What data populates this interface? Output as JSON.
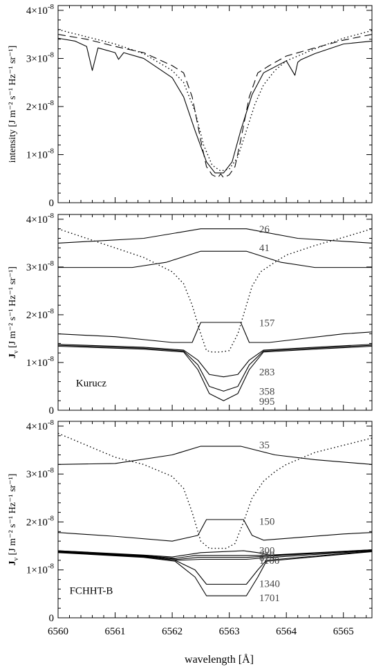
{
  "figure": {
    "xlabel": "wavelength  [Å]",
    "xticks": [
      "6560",
      "6561",
      "6562",
      "6563",
      "6564",
      "6565"
    ],
    "yticks": [
      {
        "mant": "0",
        "exp": ""
      },
      {
        "mant": "1×10",
        "exp": "-8"
      },
      {
        "mant": "2×10",
        "exp": "-8"
      },
      {
        "mant": "3×10",
        "exp": "-8"
      },
      {
        "mant": "4×10",
        "exp": "-8"
      }
    ]
  },
  "chart_data": [
    {
      "type": "line",
      "panel": "top",
      "ylabel": "intensity  [J m⁻² s⁻¹ Hz⁻¹ sr⁻¹]",
      "xlim": [
        6560,
        6565.5
      ],
      "ylim": [
        0,
        4.1e-08
      ],
      "series": [
        {
          "style": "solid",
          "x": [
            6560,
            6560.3,
            6560.5,
            6560.6,
            6560.7,
            6561.0,
            6561.06,
            6561.15,
            6561.5,
            6562.0,
            6562.2,
            6562.4,
            6562.6,
            6562.75,
            6562.9,
            6563.05,
            6563.2,
            6563.4,
            6563.6,
            6564.0,
            6564.15,
            6564.2,
            6564.25,
            6564.5,
            6565.0,
            6565.5
          ],
          "y": [
            3.42e-08,
            3.36e-08,
            3.25e-08,
            2.75e-08,
            3.22e-08,
            3.12e-08,
            2.98e-08,
            3.12e-08,
            3e-08,
            2.6e-08,
            2.2e-08,
            1.5e-08,
            8.5e-09,
            6.2e-09,
            6.2e-09,
            8.5e-09,
            1.5e-08,
            2.25e-08,
            2.7e-08,
            2.95e-08,
            2.65e-08,
            2.92e-08,
            2.97e-08,
            3.1e-08,
            3.3e-08,
            3.36e-08
          ]
        },
        {
          "style": "dashed",
          "x": [
            6560,
            6560.5,
            6561.0,
            6561.5,
            6562.0,
            6562.2,
            6562.35,
            6562.5,
            6562.6,
            6562.7,
            6562.8,
            6562.85,
            6562.9,
            6563.0,
            6563.1,
            6563.2,
            6563.35,
            6563.5,
            6563.7,
            6564.0,
            6564.5,
            6565.0,
            6565.5
          ],
          "y": [
            3.5e-08,
            3.4e-08,
            3.25e-08,
            3.12e-08,
            2.85e-08,
            2.7e-08,
            2.2e-08,
            1.3e-08,
            7.5e-09,
            5.8e-09,
            5.2e-09,
            6e-09,
            5.2e-09,
            5.8e-09,
            7.5e-09,
            1.3e-08,
            2.2e-08,
            2.7e-08,
            2.85e-08,
            3.05e-08,
            3.22e-08,
            3.38e-08,
            3.5e-08
          ]
        },
        {
          "style": "dotted",
          "x": [
            6560,
            6560.5,
            6561.0,
            6561.5,
            6562.0,
            6562.2,
            6562.4,
            6562.55,
            6562.7,
            6562.85,
            6563.0,
            6563.15,
            6563.3,
            6563.45,
            6563.6,
            6563.8,
            6564.0,
            6564.5,
            6565.0,
            6565.5
          ],
          "y": [
            3.6e-08,
            3.45e-08,
            3.3e-08,
            3.1e-08,
            2.75e-08,
            2.5e-08,
            1.9e-08,
            1.2e-08,
            7.8e-09,
            6.6e-09,
            7e-09,
            9.5e-09,
            1.5e-08,
            2.05e-08,
            2.45e-08,
            2.75e-08,
            2.95e-08,
            3.2e-08,
            3.42e-08,
            3.58e-08
          ]
        }
      ]
    },
    {
      "type": "line",
      "panel": "middle",
      "ylabel": "J",
      "ylabel_sub": "ν",
      "ylabel_units": "[J m⁻² s⁻¹ Hz⁻¹ sr⁻¹]",
      "annotation": "Kurucz",
      "xlim": [
        6560,
        6565.5
      ],
      "ylim": [
        0,
        4.1e-08
      ],
      "series": [
        {
          "name": "26",
          "x": [
            6560,
            6561.5,
            6562.5,
            6563.3,
            6564.2,
            6565.5
          ],
          "y": [
            3.5e-08,
            3.6e-08,
            3.8e-08,
            3.8e-08,
            3.6e-08,
            3.5e-08
          ]
        },
        {
          "name": "41",
          "x": [
            6560,
            6561.3,
            6561.9,
            6562.5,
            6563.3,
            6563.9,
            6564.5,
            6565.5
          ],
          "y": [
            2.99e-08,
            2.99e-08,
            3.1e-08,
            3.33e-08,
            3.33e-08,
            3.1e-08,
            2.99e-08,
            2.99e-08
          ]
        },
        {
          "name": "157",
          "x": [
            6560,
            6561.0,
            6562.0,
            6562.35,
            6562.5,
            6563.2,
            6563.35,
            6563.7,
            6565.0,
            6565.5
          ],
          "y": [
            1.6e-08,
            1.54e-08,
            1.42e-08,
            1.42e-08,
            1.84e-08,
            1.84e-08,
            1.42e-08,
            1.42e-08,
            1.6e-08,
            1.64e-08
          ]
        },
        {
          "name": "283",
          "x": [
            6560,
            6561.5,
            6562.2,
            6562.45,
            6562.65,
            6562.9,
            6563.15,
            6563.35,
            6563.6,
            6564.5,
            6565.5
          ],
          "y": [
            1.38e-08,
            1.32e-08,
            1.26e-08,
            1.05e-08,
            7.5e-09,
            7e-09,
            7.5e-09,
            1.05e-08,
            1.26e-08,
            1.32e-08,
            1.38e-08
          ]
        },
        {
          "name": "358",
          "x": [
            6560,
            6561.5,
            6562.2,
            6562.45,
            6562.65,
            6562.9,
            6563.15,
            6563.35,
            6563.6,
            6564.5,
            6565.5
          ],
          "y": [
            1.36e-08,
            1.3e-08,
            1.24e-08,
            9.5e-09,
            5e-09,
            4e-09,
            5e-09,
            9.5e-09,
            1.24e-08,
            1.3e-08,
            1.36e-08
          ]
        },
        {
          "name": "995",
          "x": [
            6560,
            6561.5,
            6562.2,
            6562.45,
            6562.65,
            6562.9,
            6563.15,
            6563.35,
            6563.6,
            6564.5,
            6565.5
          ],
          "y": [
            1.34e-08,
            1.28e-08,
            1.22e-08,
            8.5e-09,
            3.5e-09,
            2e-09,
            3.5e-09,
            8.5e-09,
            1.22e-08,
            1.28e-08,
            1.34e-08
          ]
        },
        {
          "style": "dotted",
          "x": [
            6560,
            6560.5,
            6561.0,
            6561.5,
            6562.0,
            6562.2,
            6562.35,
            6562.5,
            6562.6,
            6562.7,
            6562.85,
            6563.0,
            6563.15,
            6563.25,
            6563.4,
            6563.55,
            6563.8,
            6564.0,
            6564.5,
            6565.0,
            6565.5
          ],
          "y": [
            3.8e-08,
            3.6e-08,
            3.4e-08,
            3.2e-08,
            2.9e-08,
            2.65e-08,
            2.2e-08,
            1.6e-08,
            1.25e-08,
            1.22e-08,
            1.22e-08,
            1.25e-08,
            1.6e-08,
            2e-08,
            2.6e-08,
            2.9e-08,
            3.1e-08,
            3.25e-08,
            3.45e-08,
            3.62e-08,
            3.8e-08
          ]
        }
      ]
    },
    {
      "type": "line",
      "panel": "bottom",
      "ylabel": "J",
      "ylabel_sub": "ν",
      "ylabel_units": "[J m⁻² s⁻¹ Hz⁻¹ sr⁻¹]",
      "annotation": "FCHHT-B",
      "xlim": [
        6560,
        6565.5
      ],
      "ylim": [
        0,
        4.1e-08
      ],
      "series": [
        {
          "name": "35",
          "x": [
            6560,
            6561.0,
            6562.0,
            6562.5,
            6563.2,
            6563.8,
            6564.5,
            6565.5
          ],
          "y": [
            3.2e-08,
            3.22e-08,
            3.4e-08,
            3.58e-08,
            3.58e-08,
            3.4e-08,
            3.3e-08,
            3.2e-08
          ]
        },
        {
          "name": "150",
          "x": [
            6560,
            6561.0,
            6562.0,
            6562.45,
            6562.6,
            6563.25,
            6563.4,
            6563.6,
            6565.0,
            6565.5
          ],
          "y": [
            1.78e-08,
            1.7e-08,
            1.6e-08,
            1.72e-08,
            2.05e-08,
            2.05e-08,
            1.72e-08,
            1.62e-08,
            1.75e-08,
            1.78e-08
          ]
        },
        {
          "name": "300",
          "x": [
            6560,
            6561.5,
            6562.0,
            6562.5,
            6563.25,
            6563.5,
            6563.75,
            6565.5
          ],
          "y": [
            1.4e-08,
            1.31e-08,
            1.27e-08,
            1.36e-08,
            1.4e-08,
            1.36e-08,
            1.3e-08,
            1.42e-08
          ]
        },
        {
          "name": "719",
          "x": [
            6560,
            6561.5,
            6562.05,
            6562.4,
            6563.3,
            6563.55,
            6565.5
          ],
          "y": [
            1.4e-08,
            1.3e-08,
            1.24e-08,
            1.3e-08,
            1.3e-08,
            1.3e-08,
            1.42e-08
          ]
        },
        {
          "name": "629",
          "x": [
            6560,
            6561.5,
            6562.1,
            6562.45,
            6563.3,
            6563.6,
            6565.5
          ],
          "y": [
            1.39e-08,
            1.29e-08,
            1.22e-08,
            1.26e-08,
            1.26e-08,
            1.28e-08,
            1.41e-08
          ]
        },
        {
          "name": "1100",
          "x": [
            6560,
            6561.5,
            6562.1,
            6562.5,
            6563.3,
            6563.6,
            6565.5
          ],
          "y": [
            1.38e-08,
            1.28e-08,
            1.2e-08,
            1.22e-08,
            1.22e-08,
            1.25e-08,
            1.4e-08
          ]
        },
        {
          "name": "1340",
          "x": [
            6560,
            6561.5,
            6562.05,
            6562.4,
            6562.6,
            6563.3,
            6563.5,
            6563.65,
            6565.5
          ],
          "y": [
            1.37e-08,
            1.27e-08,
            1.2e-08,
            1e-08,
            7e-09,
            7e-09,
            1e-08,
            1.2e-08,
            1.39e-08
          ]
        },
        {
          "name": "1701",
          "x": [
            6560,
            6561.5,
            6562.05,
            6562.4,
            6562.6,
            6563.3,
            6563.5,
            6563.65,
            6565.5
          ],
          "y": [
            1.36e-08,
            1.26e-08,
            1.18e-08,
            8.5e-09,
            4.6e-09,
            4.6e-09,
            8.5e-09,
            1.18e-08,
            1.38e-08
          ]
        },
        {
          "style": "dotted",
          "x": [
            6560,
            6560.5,
            6561.0,
            6561.5,
            6562.0,
            6562.2,
            6562.35,
            6562.5,
            6562.65,
            6562.8,
            6562.95,
            6563.1,
            6563.25,
            6563.4,
            6563.6,
            6563.8,
            6564.0,
            6564.5,
            6565.0,
            6565.5
          ],
          "y": [
            3.85e-08,
            3.6e-08,
            3.35e-08,
            3.2e-08,
            2.95e-08,
            2.7e-08,
            2.2e-08,
            1.6e-08,
            1.45e-08,
            1.45e-08,
            1.45e-08,
            1.55e-08,
            2e-08,
            2.5e-08,
            2.85e-08,
            3.05e-08,
            3.2e-08,
            3.45e-08,
            3.6e-08,
            3.75e-08
          ]
        }
      ]
    }
  ],
  "curve_labels": {
    "middle": [
      {
        "text": "26",
        "x": 6563.5,
        "y": 3.81e-08
      },
      {
        "text": "41",
        "x": 6563.5,
        "y": 3.42e-08
      },
      {
        "text": "157",
        "x": 6563.5,
        "y": 1.85e-08
      },
      {
        "text": "283",
        "x": 6563.5,
        "y": 8.2e-09
      },
      {
        "text": "358",
        "x": 6563.5,
        "y": 4.1e-09
      },
      {
        "text": "995",
        "x": 6563.5,
        "y": 2e-09
      }
    ],
    "bottom": [
      {
        "text": "35",
        "x": 6563.5,
        "y": 3.62e-08
      },
      {
        "text": "150",
        "x": 6563.5,
        "y": 2.03e-08
      },
      {
        "text": "300",
        "x": 6563.5,
        "y": 1.42e-08
      },
      {
        "text": "719",
        "x": 6563.5,
        "y": 1.33e-08
      },
      {
        "text": "629",
        "x": 6563.5,
        "y": 1.27e-08
      },
      {
        "text": "1100",
        "x": 6563.5,
        "y": 1.21e-08
      },
      {
        "text": "1340",
        "x": 6563.5,
        "y": 7.3e-09
      },
      {
        "text": "1701",
        "x": 6563.5,
        "y": 4.3e-09
      }
    ]
  }
}
